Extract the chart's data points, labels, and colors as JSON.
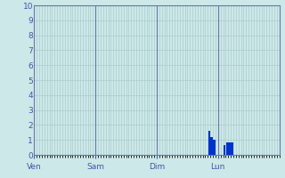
{
  "background_color": "#cce8e8",
  "plot_bg_color": "#cce8e8",
  "bar_color": "#0033cc",
  "ylim": [
    0,
    10
  ],
  "yticks": [
    0,
    1,
    2,
    3,
    4,
    5,
    6,
    7,
    8,
    9,
    10
  ],
  "day_labels": [
    "Ven",
    "Sam",
    "Dim",
    "Lun"
  ],
  "n_slots": 96,
  "slots_per_day": 24,
  "bar_values": [
    0,
    0,
    0,
    0,
    0,
    0,
    0,
    0,
    0,
    0,
    0,
    0,
    0,
    0,
    0,
    0,
    0,
    0,
    0,
    0,
    0,
    0,
    0,
    0,
    0,
    0,
    0,
    0,
    0,
    0,
    0,
    0,
    0,
    0,
    0,
    0,
    0,
    0,
    0,
    0,
    0,
    0,
    0,
    0,
    0,
    0,
    0,
    0,
    0,
    0,
    0,
    0,
    0,
    0,
    0,
    0,
    0,
    0,
    0,
    0,
    0,
    0,
    0,
    0,
    0,
    0,
    0,
    0,
    1.6,
    1.2,
    1.0,
    0,
    0,
    0,
    0.65,
    0.85,
    0.85,
    0.85,
    0,
    0,
    0,
    0,
    0,
    0,
    0,
    0,
    0,
    0,
    0,
    0,
    0,
    0,
    0,
    0,
    0,
    0
  ],
  "grid_color": "#aacccc",
  "separator_color": "#6677aa",
  "tick_color": "#4455aa",
  "font_color": "#4455aa",
  "spine_color": "#6677aa"
}
